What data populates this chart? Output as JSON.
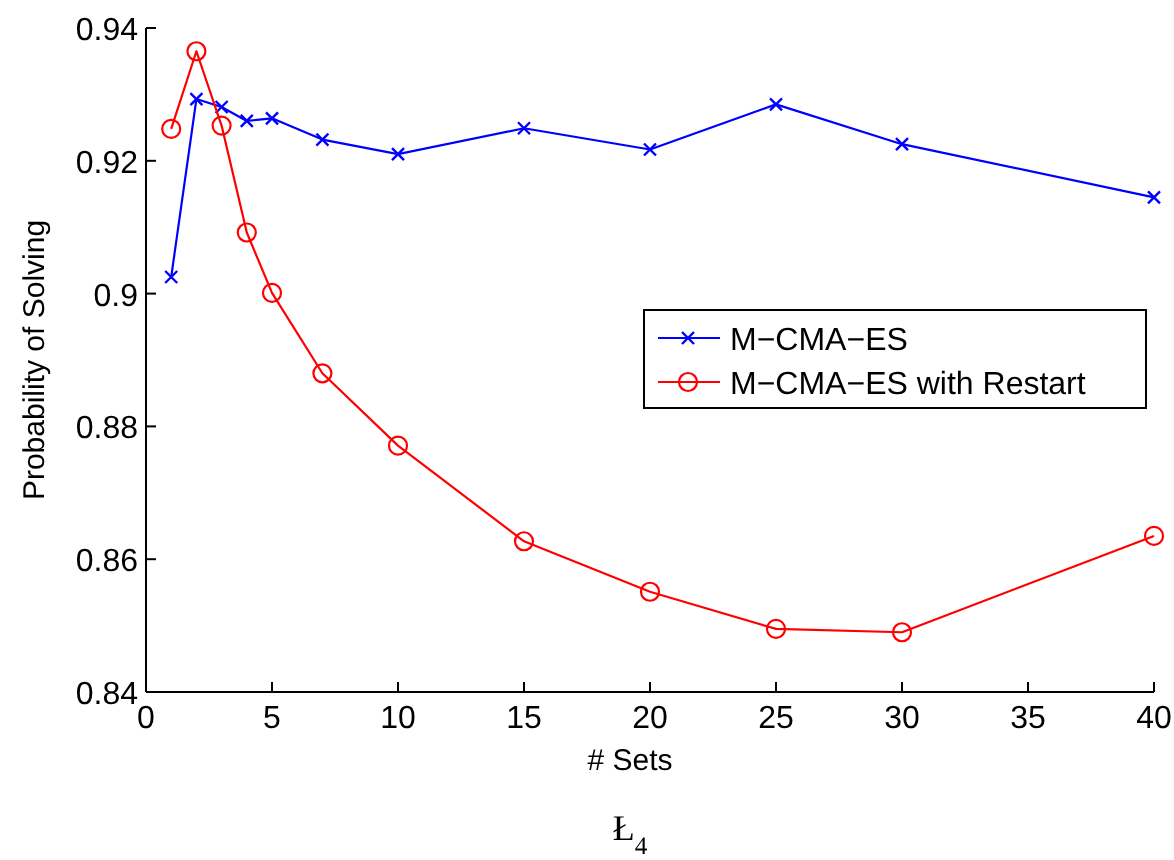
{
  "chart_data": {
    "type": "line",
    "xlabel": "# Sets",
    "ylabel": "Probability of Solving",
    "annotations": [
      "Ł$_{4}$"
    ],
    "xlim": [
      0,
      40
    ],
    "xticks": [
      0,
      5,
      10,
      15,
      20,
      25,
      30,
      35,
      40
    ],
    "ylim": [
      0.84,
      0.94
    ],
    "yticks": [
      0.84,
      0.86,
      0.88,
      0.9,
      0.92,
      0.94
    ],
    "grid": false,
    "legend": "right",
    "line_style": "solid",
    "series": [
      {
        "name": "M−CMA−ES",
        "color": "#0000ff",
        "marker": "cross",
        "x": [
          1,
          2,
          3,
          4,
          5,
          7,
          10,
          15,
          20,
          25,
          30,
          40
        ],
        "values": [
          0.9025,
          0.9293,
          0.9281,
          0.926,
          0.9264,
          0.9232,
          0.921,
          0.9249,
          0.9217,
          0.9285,
          0.9225,
          0.9145
        ]
      },
      {
        "name": "M−CMA−ES with Restart",
        "color": "#ff0000",
        "marker": "circle",
        "x": [
          1,
          2,
          3,
          4,
          5,
          7,
          10,
          15,
          20,
          25,
          30,
          40
        ],
        "values": [
          0.9248,
          0.9365,
          0.9253,
          0.9092,
          0.9001,
          0.888,
          0.8771,
          0.8627,
          0.8551,
          0.8495,
          0.849,
          0.8635
        ]
      }
    ]
  }
}
